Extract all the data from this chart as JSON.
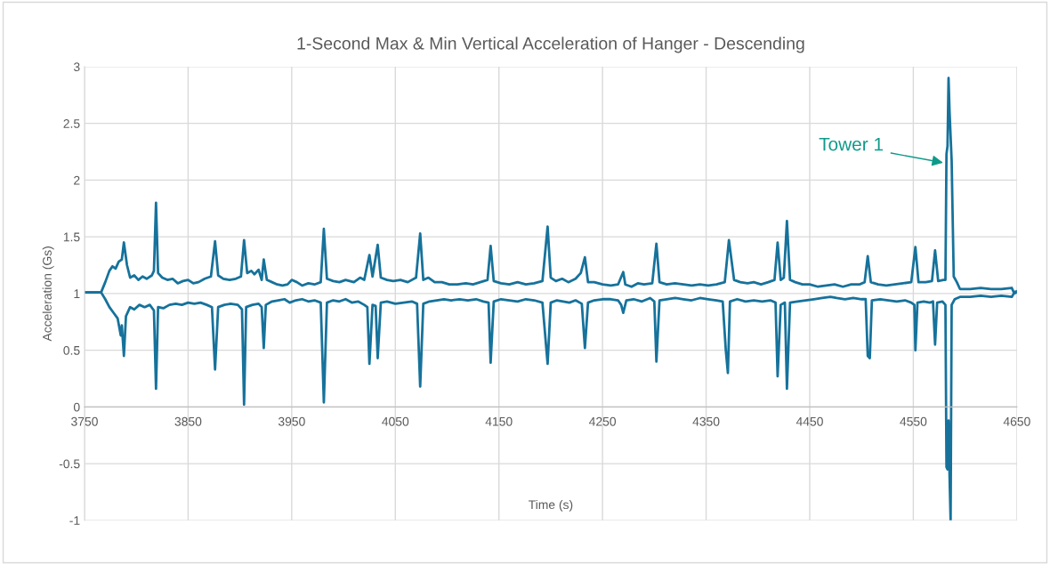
{
  "chart_data": {
    "type": "line",
    "title": "1-Second Max & Min Vertical Acceleration of Hanger - Descending",
    "xlabel": "Time (s)",
    "ylabel": "Acceleration (Gs)",
    "xlim": [
      3750,
      4650
    ],
    "xticks": [
      3750,
      3850,
      3950,
      4050,
      4150,
      4250,
      4350,
      4450,
      4550,
      4650
    ],
    "ylim": [
      -1,
      3
    ],
    "yticks": [
      -1,
      -0.5,
      0,
      0.5,
      1,
      1.5,
      2,
      2.5,
      3
    ],
    "grid": true,
    "marker": "none",
    "line_style": "solid",
    "annotations": [
      {
        "text": "Tower 1",
        "x": 4581,
        "y": 2.15
      }
    ],
    "series": [
      {
        "color": "#16729b",
        "x": [
          3750,
          3766,
          3770,
          3774,
          3777,
          3780,
          3783,
          3786,
          3788,
          3791,
          3794,
          3798,
          3802,
          3806,
          3810,
          3815,
          3817,
          3819,
          3821,
          3825,
          3830,
          3835,
          3840,
          3845,
          3850,
          3855,
          3860,
          3866,
          3872,
          3876,
          3879,
          3884,
          3890,
          3896,
          3901,
          3904,
          3907,
          3911,
          3914,
          3918,
          3921,
          3923,
          3926,
          3931,
          3936,
          3941,
          3946,
          3950,
          3955,
          3960,
          3966,
          3972,
          3978,
          3981,
          3984,
          3990,
          3996,
          4002,
          4010,
          4016,
          4020,
          4025,
          4028,
          4033,
          4036,
          4042,
          4048,
          4055,
          4062,
          4070,
          4074,
          4077,
          4082,
          4088,
          4095,
          4102,
          4110,
          4118,
          4125,
          4132,
          4139,
          4142,
          4145,
          4152,
          4160,
          4168,
          4176,
          4184,
          4192,
          4197,
          4200,
          4205,
          4211,
          4217,
          4224,
          4229,
          4233,
          4236,
          4242,
          4250,
          4258,
          4265,
          4270,
          4272,
          4278,
          4284,
          4290,
          4298,
          4302,
          4305,
          4312,
          4320,
          4328,
          4336,
          4344,
          4352,
          4360,
          4368,
          4372,
          4374,
          4377,
          4383,
          4390,
          4396,
          4403,
          4410,
          4416,
          4419,
          4422,
          4425,
          4428,
          4431,
          4436,
          4443,
          4450,
          4458,
          4466,
          4474,
          4482,
          4490,
          4498,
          4503,
          4506,
          4509,
          4516,
          4524,
          4532,
          4540,
          4548,
          4552,
          4555,
          4562,
          4568,
          4571,
          4574,
          4579,
          4581,
          4582,
          4583,
          4584,
          4585,
          4587,
          4589,
          4592,
          4595,
          4605,
          4615,
          4625,
          4635,
          4645,
          4647,
          4650
        ],
        "values": [
          1.01,
          1.01,
          1.1,
          1.2,
          1.24,
          1.22,
          1.28,
          1.3,
          1.45,
          1.25,
          1.14,
          1.16,
          1.12,
          1.15,
          1.13,
          1.16,
          1.2,
          1.8,
          1.18,
          1.14,
          1.12,
          1.13,
          1.09,
          1.11,
          1.12,
          1.09,
          1.1,
          1.13,
          1.15,
          1.46,
          1.16,
          1.13,
          1.12,
          1.13,
          1.15,
          1.47,
          1.18,
          1.2,
          1.17,
          1.21,
          1.12,
          1.3,
          1.12,
          1.1,
          1.08,
          1.07,
          1.08,
          1.12,
          1.1,
          1.07,
          1.09,
          1.08,
          1.1,
          1.57,
          1.13,
          1.11,
          1.1,
          1.12,
          1.1,
          1.14,
          1.12,
          1.34,
          1.15,
          1.43,
          1.14,
          1.12,
          1.11,
          1.12,
          1.1,
          1.14,
          1.53,
          1.12,
          1.14,
          1.1,
          1.1,
          1.08,
          1.08,
          1.09,
          1.08,
          1.1,
          1.12,
          1.42,
          1.11,
          1.09,
          1.08,
          1.1,
          1.08,
          1.09,
          1.11,
          1.59,
          1.14,
          1.11,
          1.13,
          1.1,
          1.13,
          1.18,
          1.32,
          1.1,
          1.1,
          1.08,
          1.07,
          1.08,
          1.19,
          1.08,
          1.06,
          1.09,
          1.08,
          1.09,
          1.44,
          1.1,
          1.08,
          1.09,
          1.08,
          1.07,
          1.08,
          1.07,
          1.08,
          1.1,
          1.47,
          1.33,
          1.12,
          1.1,
          1.09,
          1.1,
          1.08,
          1.1,
          1.12,
          1.45,
          1.12,
          1.14,
          1.64,
          1.12,
          1.1,
          1.08,
          1.08,
          1.06,
          1.07,
          1.08,
          1.06,
          1.08,
          1.08,
          1.1,
          1.33,
          1.1,
          1.08,
          1.07,
          1.08,
          1.09,
          1.1,
          1.41,
          1.1,
          1.1,
          1.11,
          1.38,
          1.11,
          1.12,
          1.12,
          2.23,
          2.3,
          2.9,
          2.6,
          2.17,
          1.15,
          1.1,
          1.04,
          1.04,
          1.05,
          1.04,
          1.04,
          1.05,
          1.01,
          1.02
        ]
      },
      {
        "color": "#16729b",
        "x": [
          3750,
          3766,
          3770,
          3774,
          3778,
          3782,
          3785,
          3786,
          3788,
          3790,
          3794,
          3798,
          3803,
          3808,
          3813,
          3817,
          3819,
          3821,
          3826,
          3832,
          3838,
          3844,
          3850,
          3856,
          3862,
          3868,
          3873,
          3876,
          3879,
          3885,
          3891,
          3898,
          3902,
          3904,
          3906,
          3912,
          3918,
          3921,
          3923,
          3925,
          3931,
          3937,
          3943,
          3948,
          3954,
          3960,
          3966,
          3972,
          3978,
          3981,
          3984,
          3990,
          3996,
          4002,
          4008,
          4014,
          4020,
          4023,
          4025,
          4028,
          4031,
          4033,
          4036,
          4042,
          4050,
          4058,
          4066,
          4071,
          4074,
          4077,
          4083,
          4090,
          4097,
          4104,
          4112,
          4120,
          4128,
          4135,
          4140,
          4142,
          4145,
          4152,
          4160,
          4168,
          4176,
          4184,
          4192,
          4197,
          4200,
          4206,
          4212,
          4218,
          4224,
          4230,
          4233,
          4236,
          4242,
          4250,
          4258,
          4265,
          4268,
          4270,
          4273,
          4280,
          4288,
          4296,
          4300,
          4302,
          4305,
          4312,
          4320,
          4328,
          4336,
          4344,
          4352,
          4360,
          4366,
          4369,
          4371,
          4373,
          4380,
          4388,
          4396,
          4404,
          4412,
          4417,
          4419,
          4422,
          4426,
          4428,
          4431,
          4438,
          4446,
          4454,
          4462,
          4470,
          4476,
          4484,
          4492,
          4500,
          4504,
          4506,
          4508,
          4510,
          4518,
          4526,
          4534,
          4542,
          4548,
          4551,
          4552,
          4554,
          4560,
          4566,
          4569,
          4571,
          4573,
          4578,
          4581,
          4582,
          4583,
          4584,
          4585,
          4586,
          4587,
          4590,
          4595,
          4605,
          4615,
          4625,
          4635,
          4645,
          4647,
          4650
        ],
        "values": [
          1.01,
          1.01,
          0.95,
          0.88,
          0.83,
          0.78,
          0.63,
          0.72,
          0.45,
          0.8,
          0.88,
          0.86,
          0.9,
          0.88,
          0.9,
          0.85,
          0.16,
          0.88,
          0.87,
          0.9,
          0.91,
          0.9,
          0.92,
          0.91,
          0.92,
          0.9,
          0.88,
          0.33,
          0.88,
          0.9,
          0.91,
          0.9,
          0.86,
          0.02,
          0.88,
          0.9,
          0.91,
          0.88,
          0.52,
          0.9,
          0.93,
          0.94,
          0.95,
          0.92,
          0.94,
          0.95,
          0.93,
          0.94,
          0.92,
          0.04,
          0.92,
          0.94,
          0.93,
          0.95,
          0.92,
          0.93,
          0.9,
          0.88,
          0.38,
          0.9,
          0.89,
          0.43,
          0.92,
          0.93,
          0.91,
          0.92,
          0.93,
          0.91,
          0.18,
          0.91,
          0.93,
          0.94,
          0.95,
          0.94,
          0.95,
          0.94,
          0.95,
          0.93,
          0.92,
          0.39,
          0.93,
          0.95,
          0.94,
          0.93,
          0.95,
          0.94,
          0.92,
          0.38,
          0.92,
          0.94,
          0.93,
          0.92,
          0.94,
          0.91,
          0.52,
          0.92,
          0.94,
          0.95,
          0.95,
          0.94,
          0.9,
          0.83,
          0.94,
          0.95,
          0.93,
          0.96,
          0.93,
          0.4,
          0.94,
          0.95,
          0.96,
          0.95,
          0.94,
          0.96,
          0.95,
          0.94,
          0.93,
          0.5,
          0.3,
          0.93,
          0.95,
          0.93,
          0.94,
          0.93,
          0.94,
          0.92,
          0.27,
          0.9,
          0.92,
          0.16,
          0.92,
          0.93,
          0.94,
          0.95,
          0.96,
          0.97,
          0.96,
          0.95,
          0.96,
          0.95,
          0.95,
          0.45,
          0.43,
          0.94,
          0.95,
          0.94,
          0.93,
          0.94,
          0.92,
          0.9,
          0.5,
          0.92,
          0.93,
          0.92,
          0.93,
          0.55,
          0.92,
          0.93,
          0.9,
          -0.53,
          -0.55,
          -0.12,
          -0.62,
          -1.0,
          0.9,
          0.95,
          0.97,
          0.97,
          0.98,
          0.97,
          0.98,
          0.97,
          1.0,
          1.01
        ]
      }
    ]
  }
}
